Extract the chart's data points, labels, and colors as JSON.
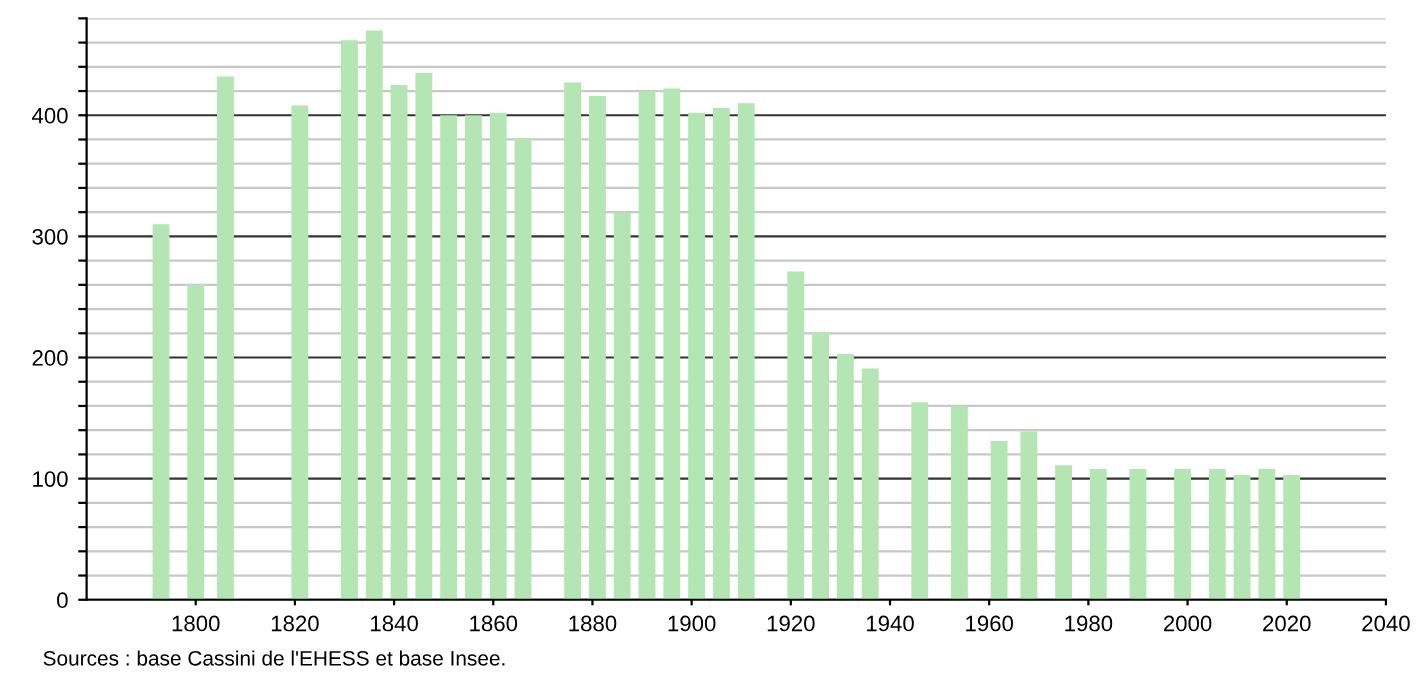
{
  "chart_data": {
    "type": "bar",
    "color": "#b3e6b3",
    "x": [
      1793,
      1800,
      1806,
      1821,
      1831,
      1836,
      1841,
      1846,
      1851,
      1856,
      1861,
      1866,
      1876,
      1881,
      1886,
      1891,
      1896,
      1901,
      1906,
      1911,
      1921,
      1926,
      1931,
      1936,
      1946,
      1954,
      1962,
      1968,
      1975,
      1982,
      1990,
      1999,
      2006,
      2011,
      2016,
      2021
    ],
    "values": [
      310,
      260,
      432,
      408,
      462,
      470,
      425,
      435,
      400,
      400,
      402,
      381,
      427,
      416,
      320,
      420,
      422,
      402,
      406,
      410,
      271,
      221,
      203,
      191,
      163,
      160,
      131,
      139,
      111,
      108,
      108,
      108,
      108,
      103,
      108,
      103
    ],
    "xlim": [
      1778,
      2040
    ],
    "xticks": [
      1800,
      1820,
      1840,
      1860,
      1880,
      1900,
      1920,
      1940,
      1960,
      1980,
      2000,
      2020,
      2040
    ],
    "ylim": [
      0,
      480
    ],
    "yticks": [
      0,
      {
        "value": 20,
        "label": null
      },
      {
        "value": 40,
        "label": null
      },
      {
        "value": 60,
        "label": null
      },
      {
        "value": 80,
        "label": null
      },
      100,
      {
        "value": 120,
        "label": null
      },
      {
        "value": 140,
        "label": null
      },
      {
        "value": 160,
        "label": null
      },
      {
        "value": 180,
        "label": null
      },
      200,
      {
        "value": 220,
        "label": null
      },
      {
        "value": 240,
        "label": null
      },
      {
        "value": 260,
        "label": null
      },
      {
        "value": 280,
        "label": null
      },
      300,
      {
        "value": 320,
        "label": null
      },
      {
        "value": 340,
        "label": null
      },
      {
        "value": 360,
        "label": null
      },
      {
        "value": 380,
        "label": null
      },
      400,
      {
        "value": 420,
        "label": null
      },
      {
        "value": 440,
        "label": null
      },
      {
        "value": 460,
        "label": null
      },
      {
        "value": 480,
        "label": null
      }
    ],
    "grid": "y",
    "annotations": [
      "Sources : base Cassini de l'EHESS et base Insee."
    ]
  }
}
